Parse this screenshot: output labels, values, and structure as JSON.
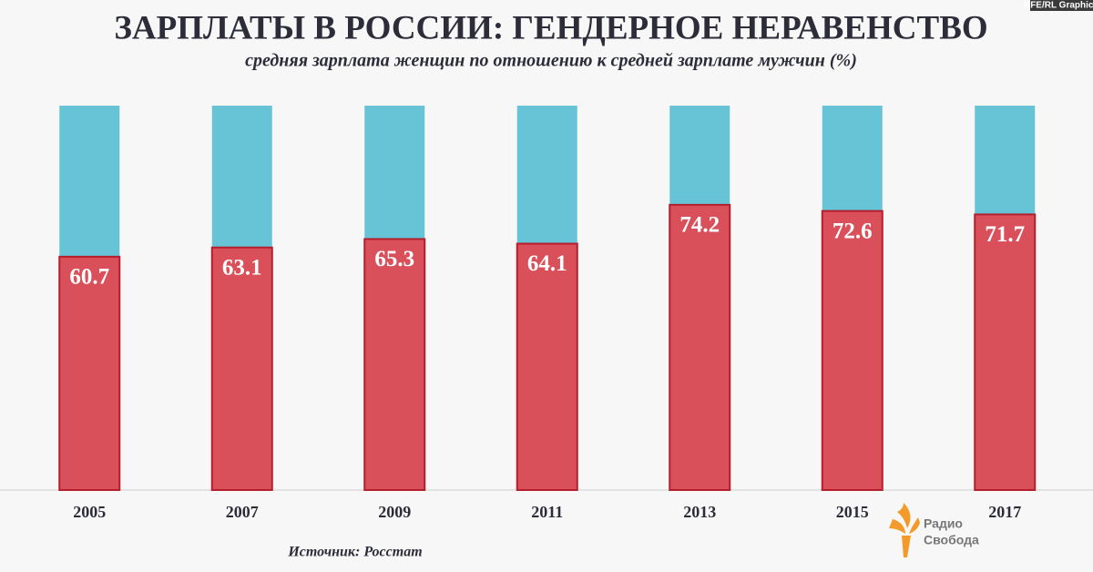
{
  "chart_data": {
    "type": "bar",
    "title": "ЗАРПЛАТЫ В РОССИИ: ГЕНДЕРНОЕ НЕРАВЕНСТВО",
    "subtitle": "средняя зарплата женщин по отношению к средней зарплате мужчин (%)",
    "categories": [
      "2005",
      "2007",
      "2009",
      "2011",
      "2013",
      "2015",
      "2017"
    ],
    "values": [
      60.7,
      63.1,
      65.3,
      64.1,
      74.2,
      72.6,
      71.7
    ],
    "color": "#d9505a",
    "background_color": "#67c3d6",
    "ylim": [
      0,
      100
    ],
    "source": "Источник: Росстат",
    "credit": "RFE/RL Graphics",
    "logo_lines": [
      "Радио",
      "Свобода"
    ]
  }
}
